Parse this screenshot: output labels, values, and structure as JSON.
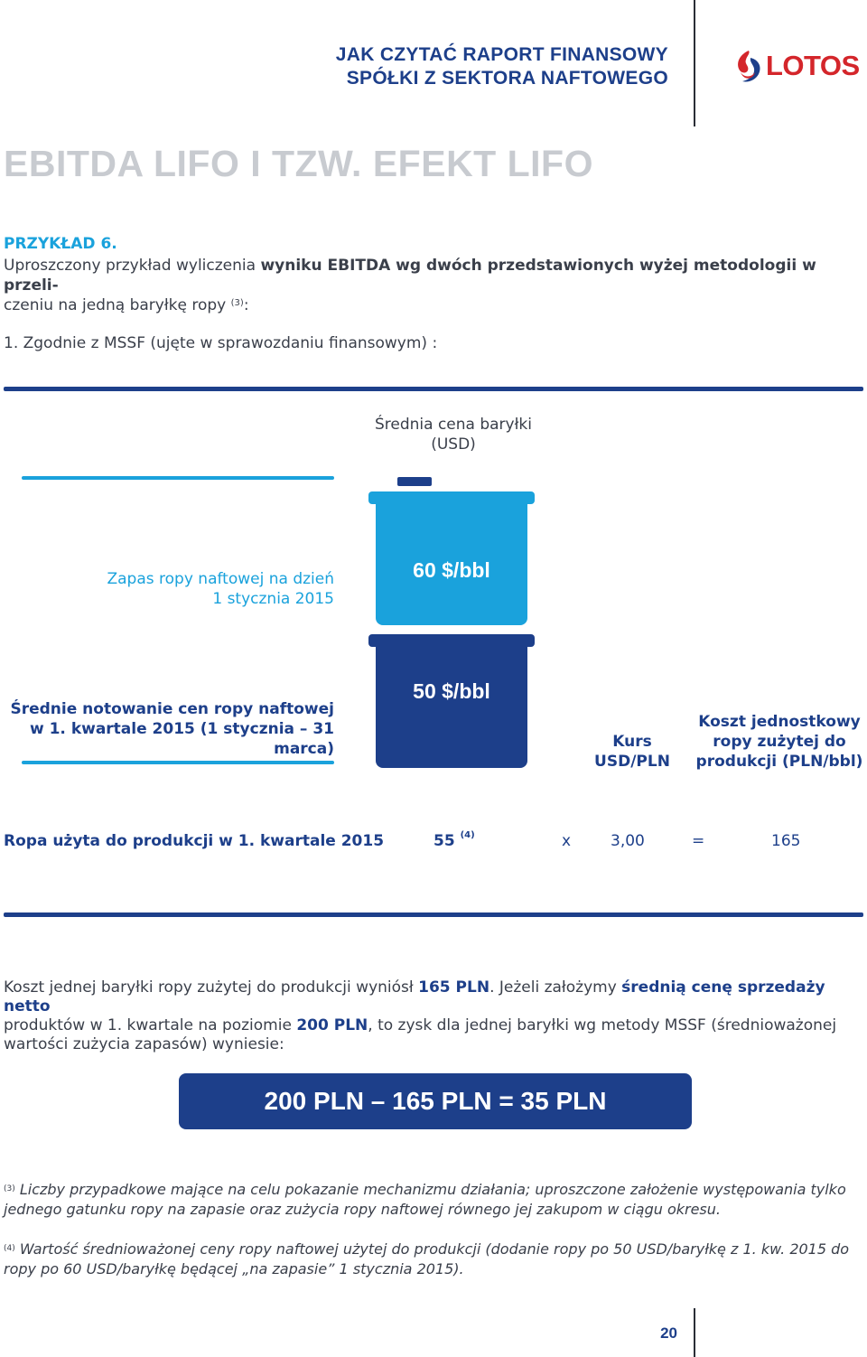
{
  "header": {
    "title_line1": "JAK CZYTAĆ RAPORT FINANSOWY",
    "title_line2": "SPÓŁKI Z SEKTORA NAFTOWEGO",
    "logo_text": "LOTOS",
    "logo_color": "#d4262b"
  },
  "page_title": "EBITDA LIFO I TZW. EFEKT LIFO",
  "example": {
    "label": "PRZYKŁAD 6.",
    "intro_a": "Uproszczony przykład wyliczenia ",
    "intro_b": "wyniku EBITDA wg dwóch przedstawionych wyżej metodologii w przeli-",
    "intro_c": "czeniu na jedną baryłkę ropy ",
    "intro_sup": "(3)",
    "intro_d": ":",
    "section": "1. Zgodnie z MSSF (ujęte w sprawozdaniu finansowym) :"
  },
  "diagram": {
    "barrel_header_line1": "Średnia cena baryłki",
    "barrel_header_line2": "(USD)",
    "stock_label_line1": "Zapas ropy naftowej na dzień",
    "stock_label_line2": "1 stycznia 2015",
    "avg_label_line1": "Średnie notowanie cen ropy naftowej",
    "avg_label_line2": "w 1. kwartale 2015 (1 stycznia – 31 marca)",
    "barrel_top_value": "60 $/bbl",
    "barrel_bottom_value": "50 $/bbl",
    "kurs_line1": "Kurs",
    "kurs_line2": "USD/PLN",
    "koszt_line1": "Koszt jednostkowy",
    "koszt_line2": "ropy zużytej do",
    "koszt_line3": "produkcji (PLN/bbl)",
    "colors": {
      "dark_blue": "#1d3f8a",
      "cyan": "#1aa2dc"
    }
  },
  "calc_row": {
    "label": "Ropa użyta do produkcji w 1. kwartale 2015",
    "value_usd": "55",
    "value_usd_sup": "(4)",
    "times": "x",
    "rate": "3,00",
    "equals": "=",
    "result": "165"
  },
  "paragraph": {
    "p1": "Koszt jednej baryłki ropy zużytej do produkcji wyniósł ",
    "p1_bold": "165 PLN",
    "p2": ". Jeżeli założymy ",
    "p2_bold": "średnią cenę sprzedaży netto",
    "p3": "produktów w 1. kwartale na poziomie ",
    "p3_bold": "200 PLN",
    "p4": ", to zysk dla jednej baryłki wg metody MSSF (średnioważonej wartości zużycia zapasów) wyniesie:"
  },
  "result_box": "200 PLN – 165 PLN = 35 PLN",
  "footnotes": {
    "fn3_mark": "(3)",
    "fn3_text": " Liczby przypadkowe mające na celu pokazanie mechanizmu działania; uproszczone założenie występowania tylko jednego gatunku ropy na zapasie oraz zużycia ropy naftowej równego jej zakupom w ciągu okresu.",
    "fn4_mark": "(4)",
    "fn4_text": " Wartość średnioważonej ceny ropy naftowej użytej do produkcji (dodanie ropy po 50 USD/baryłkę z 1. kw. 2015 do ropy po 60 USD/baryłkę będącej „na zapasie” 1 stycznia 2015)."
  },
  "page_number": "20"
}
